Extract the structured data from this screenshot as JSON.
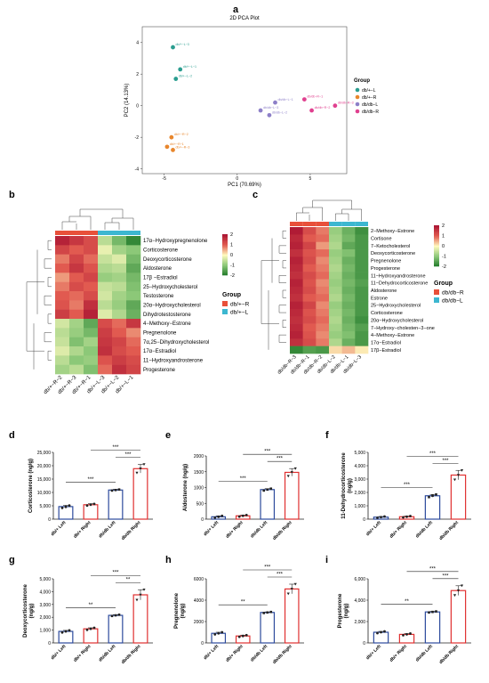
{
  "panels": {
    "a": "a",
    "b": "b",
    "c": "c",
    "d": "d",
    "e": "e",
    "f": "f",
    "g": "g",
    "h": "h",
    "i": "i"
  },
  "chart_data": [
    {
      "id": "pca",
      "type": "scatter",
      "title": "2D PCA Plot",
      "xlabel": "PC1 (70.69%)",
      "ylabel": "PC2 (14.13%)",
      "xlim": [
        -6.5,
        7.5
      ],
      "ylim": [
        -4.3,
        5
      ],
      "xticks": [
        -5,
        0,
        5
      ],
      "yticks": [
        -4,
        -2,
        0,
        2,
        4
      ],
      "legend_title": "Group",
      "legend_position": "right",
      "series": [
        {
          "name": "db/+−L",
          "color": "#2a9d8f",
          "points": [
            {
              "label": "db/+−L−3",
              "x": -4.4,
              "y": 3.7
            },
            {
              "label": "db/+−L−1",
              "x": -3.9,
              "y": 2.3
            },
            {
              "label": "db/+−L−2",
              "x": -4.2,
              "y": 1.7
            }
          ]
        },
        {
          "name": "db/+−R",
          "color": "#e8862c",
          "points": [
            {
              "label": "db/+−R−2",
              "x": -4.5,
              "y": -2.0
            },
            {
              "label": "db/+−R−1",
              "x": -4.8,
              "y": -2.6
            },
            {
              "label": "db/+−R−3",
              "x": -4.4,
              "y": -2.8
            }
          ]
        },
        {
          "name": "db/db−L",
          "color": "#8d7fc8",
          "points": [
            {
              "label": "db/db−L−1",
              "x": 2.6,
              "y": 0.2
            },
            {
              "label": "db/db−L−3",
              "x": 1.6,
              "y": -0.3
            },
            {
              "label": "db/db−L−2",
              "x": 2.2,
              "y": -0.6
            }
          ]
        },
        {
          "name": "db/db−R",
          "color": "#e0408f",
          "points": [
            {
              "label": "db/db−R−1",
              "x": 4.6,
              "y": 0.4
            },
            {
              "label": "db/db−R−3",
              "x": 6.7,
              "y": 0.0
            },
            {
              "label": "db/db−R−2",
              "x": 5.1,
              "y": -0.3
            }
          ]
        }
      ]
    },
    {
      "id": "heatmap-b",
      "type": "heatmap",
      "columns": [
        "db/+−R−2",
        "db/+−R−3",
        "db/+−R−1",
        "db/+−L−3",
        "db/+−L−2",
        "db/+−L−1"
      ],
      "column_groups": [
        "db/+−R",
        "db/+−R",
        "db/+−R",
        "db/+−L",
        "db/+−L",
        "db/+−L"
      ],
      "group_colors": {
        "db/+−R": "#e8503a",
        "db/+−L": "#3cb7d0"
      },
      "legend_title": "Group",
      "scale_ticks": [
        2,
        1,
        0,
        -1,
        -2
      ],
      "rows": [
        "17α−Hydroxypregnenolone",
        "Corticosterone",
        "Deoxycorticosterone",
        "Aldosterone",
        "17β −Estradiol",
        "25−Hydroxycholesterol",
        "Testosterone",
        "20α−Hydroxycholesterol",
        "Dihydrotestosterone",
        "4−Methoxy−Estrone",
        "Pregnenolone",
        "7α,25−Dihydroxycholesterol",
        "17α−Estradiol",
        "11−Hydroxyandrosterone",
        "Progesterone"
      ],
      "values": [
        [
          1.8,
          1.5,
          1.2,
          -0.6,
          -1.2,
          -1.8
        ],
        [
          1.3,
          1.0,
          1.2,
          -0.2,
          -0.8,
          -1.0
        ],
        [
          0.8,
          1.3,
          0.9,
          -0.5,
          -0.3,
          -1.2
        ],
        [
          1.0,
          1.5,
          1.1,
          -0.7,
          -0.6,
          -1.4
        ],
        [
          0.6,
          1.0,
          1.3,
          -0.9,
          -0.8,
          -1.2
        ],
        [
          0.8,
          1.2,
          1.0,
          -0.5,
          -0.6,
          -1.1
        ],
        [
          1.0,
          0.9,
          1.2,
          -0.4,
          -0.8,
          -1.0
        ],
        [
          1.1,
          0.8,
          1.6,
          -0.6,
          -0.9,
          -1.4
        ],
        [
          1.4,
          1.0,
          1.8,
          -0.3,
          -0.7,
          -1.3
        ],
        [
          -0.4,
          -0.8,
          -1.4,
          1.2,
          0.9,
          1.5
        ],
        [
          -0.6,
          -0.9,
          -1.2,
          1.4,
          1.0,
          0.7
        ],
        [
          -0.5,
          -1.1,
          -0.8,
          1.5,
          1.3,
          0.9
        ],
        [
          -0.3,
          -0.7,
          -1.0,
          1.6,
          1.2,
          1.0
        ],
        [
          -0.6,
          -1.0,
          -0.9,
          1.1,
          1.4,
          1.2
        ],
        [
          -0.8,
          -0.6,
          -1.1,
          0.9,
          1.6,
          1.3
        ]
      ]
    },
    {
      "id": "heatmap-c",
      "type": "heatmap",
      "columns": [
        "db/db−R−3",
        "db/db−R−1",
        "db/db−R−2",
        "db/db−L−2",
        "db/db−L−1",
        "db/db−L−3"
      ],
      "column_groups": [
        "db/db−R",
        "db/db−R",
        "db/db−R",
        "db/db−L",
        "db/db−L",
        "db/db−L"
      ],
      "group_colors": {
        "db/db−R": "#e8503a",
        "db/db−L": "#3cb7d0"
      },
      "legend_title": "Group",
      "scale_ticks": [
        2,
        1,
        0,
        -1,
        -2
      ],
      "rows": [
        "2−Methoxy−Estrone",
        "Cortisone",
        "7−Ketocholesterol",
        "Deoxycorticosterone",
        "Pregnenolone",
        "Progesterone",
        "11−Hydroxyandrosterone",
        "11−Dehydrocorticosterone",
        "Aldosterone",
        "Estrone",
        "25−Hydroxycholesterol",
        "Corticosterone",
        "20α−Hydroxycholesterol",
        "7−Hydroxy−cholesten−3−one",
        "4−Methoxy−Estrone",
        "17α−Estradiol",
        "17β−Estradiol"
      ],
      "values": [
        [
          1.9,
          1.2,
          0.8,
          -0.9,
          -1.3,
          -1.7
        ],
        [
          1.7,
          1.0,
          0.9,
          -0.8,
          -1.2,
          -1.6
        ],
        [
          1.8,
          1.3,
          0.6,
          -0.7,
          -1.4,
          -1.6
        ],
        [
          1.6,
          1.1,
          0.9,
          -0.9,
          -1.1,
          -1.6
        ],
        [
          1.8,
          1.2,
          0.7,
          -0.8,
          -1.3,
          -1.6
        ],
        [
          1.7,
          1.0,
          0.8,
          -0.7,
          -1.2,
          -1.6
        ],
        [
          1.6,
          1.2,
          0.9,
          -0.8,
          -1.3,
          -1.6
        ],
        [
          1.8,
          1.1,
          0.7,
          -0.9,
          -1.2,
          -1.5
        ],
        [
          1.7,
          1.2,
          0.8,
          -0.8,
          -1.3,
          -1.6
        ],
        [
          1.6,
          1.0,
          0.9,
          -0.7,
          -1.2,
          -1.6
        ],
        [
          1.8,
          1.3,
          0.7,
          -0.9,
          -1.3,
          -1.6
        ],
        [
          1.7,
          1.1,
          0.8,
          -0.8,
          -1.2,
          -1.6
        ],
        [
          1.6,
          1.2,
          0.9,
          -0.7,
          -1.3,
          -1.7
        ],
        [
          1.7,
          1.0,
          0.8,
          -0.8,
          -1.2,
          -1.5
        ],
        [
          1.8,
          1.1,
          0.7,
          -0.9,
          -1.1,
          -1.6
        ],
        [
          1.6,
          1.2,
          0.8,
          -0.7,
          -1.3,
          -1.6
        ],
        [
          -1.8,
          -1.5,
          -1.6,
          0.2,
          0.4,
          0.1
        ]
      ]
    },
    {
      "id": "bar-d",
      "type": "bar",
      "ylabel": "Corticosterone (ng/g)",
      "ylim": [
        0,
        25000
      ],
      "yticks": [
        "0",
        "5,000",
        "10,000",
        "15,000",
        "20,000",
        "25,000"
      ],
      "categories": [
        "db/+ Left",
        "db/+ Right",
        "db/db Left",
        "db/db Right"
      ],
      "values": [
        4700,
        5400,
        10900,
        18900
      ],
      "errors": [
        500,
        400,
        300,
        1600
      ],
      "points": [
        [
          4200,
          4600,
          5100
        ],
        [
          5100,
          5400,
          5700
        ],
        [
          10700,
          10900,
          11100
        ],
        [
          17300,
          18900,
          20500
        ]
      ],
      "significance": [
        {
          "from": 0,
          "to": 2,
          "label": "***"
        },
        {
          "from": 1,
          "to": 3,
          "label": "***"
        },
        {
          "from": 2,
          "to": 3,
          "label": "***"
        }
      ]
    },
    {
      "id": "bar-e",
      "type": "bar",
      "ylabel": "Aldosterone (ng/g)",
      "ylim": [
        0,
        2000
      ],
      "yticks": [
        "0",
        "500",
        "1000",
        "1500",
        "2000"
      ],
      "categories": [
        "db/+ Left",
        "db/+ Right",
        "db/db Left",
        "db/db Right"
      ],
      "values": [
        75,
        105,
        935,
        1480
      ],
      "errors": [
        30,
        25,
        30,
        120
      ],
      "points": [
        [
          45,
          75,
          105
        ],
        [
          80,
          105,
          130
        ],
        [
          905,
          935,
          965
        ],
        [
          1360,
          1480,
          1600
        ]
      ],
      "significance": [
        {
          "from": 0,
          "to": 2,
          "label": "***"
        },
        {
          "from": 1,
          "to": 3,
          "label": "***"
        },
        {
          "from": 2,
          "to": 3,
          "label": "***"
        }
      ]
    },
    {
      "id": "bar-f",
      "type": "bar",
      "ylabel": "11-Dehydrocorticosterone\n(ng/g)",
      "ylim": [
        0,
        5000
      ],
      "yticks": [
        "0",
        "1,000",
        "2,000",
        "3,000",
        "4,000",
        "5,000"
      ],
      "categories": [
        "db/+ Left",
        "db/+ Right",
        "db/db Left",
        "db/db Right"
      ],
      "values": [
        150,
        180,
        1750,
        3300
      ],
      "errors": [
        50,
        50,
        100,
        350
      ],
      "points": [
        [
          100,
          150,
          200
        ],
        [
          130,
          180,
          230
        ],
        [
          1650,
          1750,
          1850
        ],
        [
          2950,
          3300,
          3650
        ]
      ],
      "significance": [
        {
          "from": 0,
          "to": 2,
          "label": "***"
        },
        {
          "from": 1,
          "to": 3,
          "label": "***"
        },
        {
          "from": 2,
          "to": 3,
          "label": "***"
        }
      ]
    },
    {
      "id": "bar-g",
      "type": "bar",
      "ylabel": "Deoxycorticosterone\n(ng/g)",
      "ylim": [
        0,
        5000
      ],
      "yticks": [
        "0",
        "1,000",
        "2,000",
        "3,000",
        "4,000",
        "5,000"
      ],
      "categories": [
        "db/+ Left",
        "db/+ Right",
        "db/db Left",
        "db/db Right"
      ],
      "values": [
        900,
        1100,
        2150,
        3750
      ],
      "errors": [
        80,
        80,
        50,
        400
      ],
      "points": [
        [
          820,
          900,
          980
        ],
        [
          1020,
          1100,
          1180
        ],
        [
          2100,
          2150,
          2200
        ],
        [
          3350,
          3750,
          4150
        ]
      ],
      "significance": [
        {
          "from": 0,
          "to": 2,
          "label": "**"
        },
        {
          "from": 1,
          "to": 3,
          "label": "***"
        },
        {
          "from": 2,
          "to": 3,
          "label": "**"
        }
      ]
    },
    {
      "id": "bar-h",
      "type": "bar",
      "ylabel": "Pregnenolone\n(ng/g)",
      "ylim": [
        0,
        6000
      ],
      "yticks": [
        "0",
        "2000",
        "4000",
        "6000"
      ],
      "categories": [
        "db/+ Left",
        "db/+ Right",
        "db/db Left",
        "db/db Right"
      ],
      "values": [
        900,
        650,
        2850,
        5050
      ],
      "errors": [
        100,
        80,
        50,
        450
      ],
      "points": [
        [
          800,
          900,
          1000
        ],
        [
          570,
          650,
          730
        ],
        [
          2800,
          2850,
          2900
        ],
        [
          4600,
          5050,
          5500
        ]
      ],
      "significance": [
        {
          "from": 0,
          "to": 2,
          "label": "**"
        },
        {
          "from": 1,
          "to": 3,
          "label": "***"
        },
        {
          "from": 2,
          "to": 3,
          "label": "***"
        }
      ]
    },
    {
      "id": "bar-i",
      "type": "bar",
      "ylabel": "Progesterone\n(ng/g)",
      "ylim": [
        0,
        6000
      ],
      "yticks": [
        "0",
        "2,000",
        "4,000",
        "6,000"
      ],
      "categories": [
        "db/+ Left",
        "db/+ Right",
        "db/db Left",
        "db/db Right"
      ],
      "values": [
        1000,
        800,
        2900,
        4900
      ],
      "errors": [
        80,
        80,
        50,
        450
      ],
      "points": [
        [
          920,
          1000,
          1080
        ],
        [
          720,
          800,
          880
        ],
        [
          2850,
          2900,
          2950
        ],
        [
          4450,
          4900,
          5350
        ]
      ],
      "significance": [
        {
          "from": 0,
          "to": 2,
          "label": "**"
        },
        {
          "from": 1,
          "to": 3,
          "label": "***"
        },
        {
          "from": 2,
          "to": 3,
          "label": "***"
        }
      ]
    }
  ]
}
